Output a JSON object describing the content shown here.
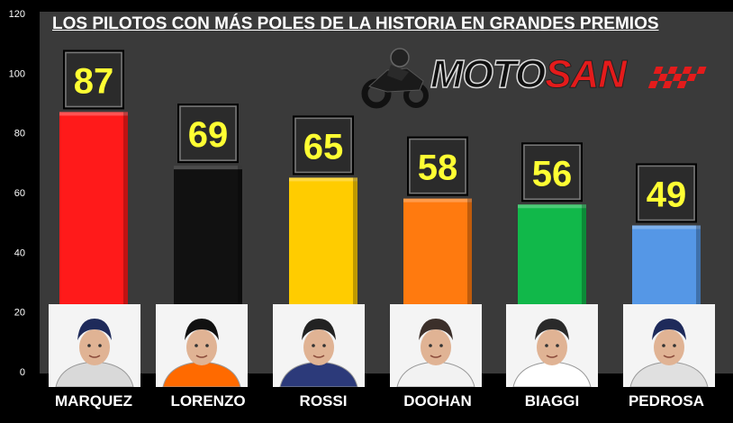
{
  "brand": {
    "name_part1": "MOTO",
    "name_part2": "SAN",
    "motorbike_icon": "motorcycle-rider-icon",
    "flag_icon": "checkered-flag-icon"
  },
  "colors": {
    "background": "#000000",
    "plot_background": "#3a3a3a",
    "label_text": "#ffffff",
    "value_text": "#ffff33",
    "value_box": "#2b2b2b"
  },
  "chart_data": {
    "type": "bar",
    "title": "LOS PILOTOS CON MÁS POLES DE LA HISTORIA EN GRANDES PREMIOS",
    "categories": [
      "MARQUEZ",
      "LORENZO",
      "ROSSI",
      "DOOHAN",
      "BIAGGI",
      "PEDROSA"
    ],
    "values": [
      87,
      69,
      65,
      58,
      56,
      49
    ],
    "bar_colors": [
      "#ff1a1a",
      "#111111",
      "#ffcc00",
      "#ff7a0f",
      "#11b84a",
      "#5597e6"
    ],
    "yticks": [
      0,
      20,
      40,
      60,
      80,
      100,
      120
    ],
    "ylim": [
      0,
      120
    ],
    "grid": false,
    "legend": "none",
    "data_labels": true
  },
  "photos": [
    {
      "helmet": "#1e2a5a",
      "shirt": "#d9d9d9"
    },
    {
      "helmet": "#111111",
      "shirt": "#ff6a00"
    },
    {
      "helmet": "#222222",
      "shirt": "#2c3a7a"
    },
    {
      "helmet": "#3b2f2a",
      "shirt": "#f2f2f2"
    },
    {
      "helmet": "#2a2a2a",
      "shirt": "#ffffff"
    },
    {
      "helmet": "#1e2a5a",
      "shirt": "#e0e0e0"
    }
  ]
}
